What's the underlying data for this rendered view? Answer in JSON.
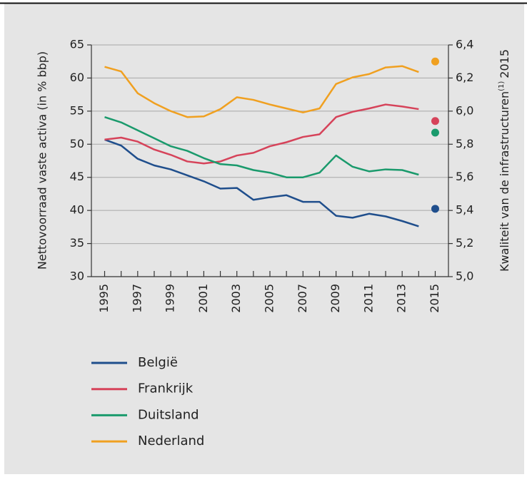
{
  "chart_data": {
    "type": "line",
    "ylabel": "Nettovoorraad vaste activa (in % bbp)",
    "y2label": [
      "Kwaliteit van de infrastructuren",
      "(1)",
      "2015"
    ],
    "x": [
      1995,
      1996,
      1997,
      1998,
      1999,
      2000,
      2001,
      2002,
      2003,
      2004,
      2005,
      2006,
      2007,
      2008,
      2009,
      2010,
      2011,
      2012,
      2013,
      2014
    ],
    "xlim": [
      1994.2,
      2015.8
    ],
    "xticks": [
      1995,
      1997,
      1999,
      2001,
      2003,
      2005,
      2007,
      2009,
      2011,
      2013,
      2015
    ],
    "xminor_ticks": [
      1995,
      1996,
      1997,
      1998,
      1999,
      2000,
      2001,
      2002,
      2003,
      2004,
      2005,
      2006,
      2007,
      2008,
      2009,
      2010,
      2011,
      2012,
      2013,
      2014,
      2015
    ],
    "ylim": [
      30,
      65
    ],
    "yticks": [
      30,
      35,
      40,
      45,
      50,
      55,
      60,
      65
    ],
    "y2lim": [
      5.0,
      6.4
    ],
    "y2ticks": [
      {
        "value": 5.0,
        "label": "5,0"
      },
      {
        "value": 5.2,
        "label": "5,2"
      },
      {
        "value": 5.4,
        "label": "5,4"
      },
      {
        "value": 5.6,
        "label": "5,6"
      },
      {
        "value": 5.8,
        "label": "5,8"
      },
      {
        "value": 6.0,
        "label": "6,0"
      },
      {
        "value": 6.2,
        "label": "6,2"
      },
      {
        "value": 6.4,
        "label": "6,4"
      }
    ],
    "grid": true,
    "series": [
      {
        "name": "België",
        "color": "#1f4e8c",
        "values": [
          50.7,
          49.8,
          47.8,
          46.8,
          46.2,
          45.3,
          44.4,
          43.3,
          43.4,
          41.6,
          42.0,
          42.3,
          41.3,
          41.3,
          39.2,
          38.9,
          39.5,
          39.1,
          38.4,
          37.6
        ]
      },
      {
        "name": "Frankrijk",
        "color": "#d6435a",
        "values": [
          50.7,
          51.0,
          50.4,
          49.2,
          48.4,
          47.4,
          47.1,
          47.4,
          48.3,
          48.7,
          49.7,
          50.3,
          51.1,
          51.5,
          54.1,
          54.9,
          55.4,
          56.0,
          55.7,
          55.3
        ]
      },
      {
        "name": "Duitsland",
        "color": "#1a9a6c",
        "values": [
          54.1,
          53.3,
          52.1,
          50.9,
          49.7,
          49.0,
          47.9,
          47.0,
          46.8,
          46.1,
          45.7,
          45.0,
          45.0,
          45.7,
          48.3,
          46.6,
          45.9,
          46.2,
          46.1,
          45.4
        ]
      },
      {
        "name": "Nederland",
        "color": "#f0a020",
        "values": [
          61.7,
          61.0,
          57.7,
          56.2,
          55.0,
          54.1,
          54.2,
          55.3,
          57.1,
          56.7,
          56.0,
          55.4,
          54.8,
          55.4,
          59.1,
          60.1,
          60.6,
          61.6,
          61.8,
          60.9
        ]
      }
    ],
    "infrastructure_points": {
      "x": 2015,
      "axis": "y2",
      "values": [
        5.41,
        5.94,
        5.87,
        6.3
      ]
    }
  }
}
